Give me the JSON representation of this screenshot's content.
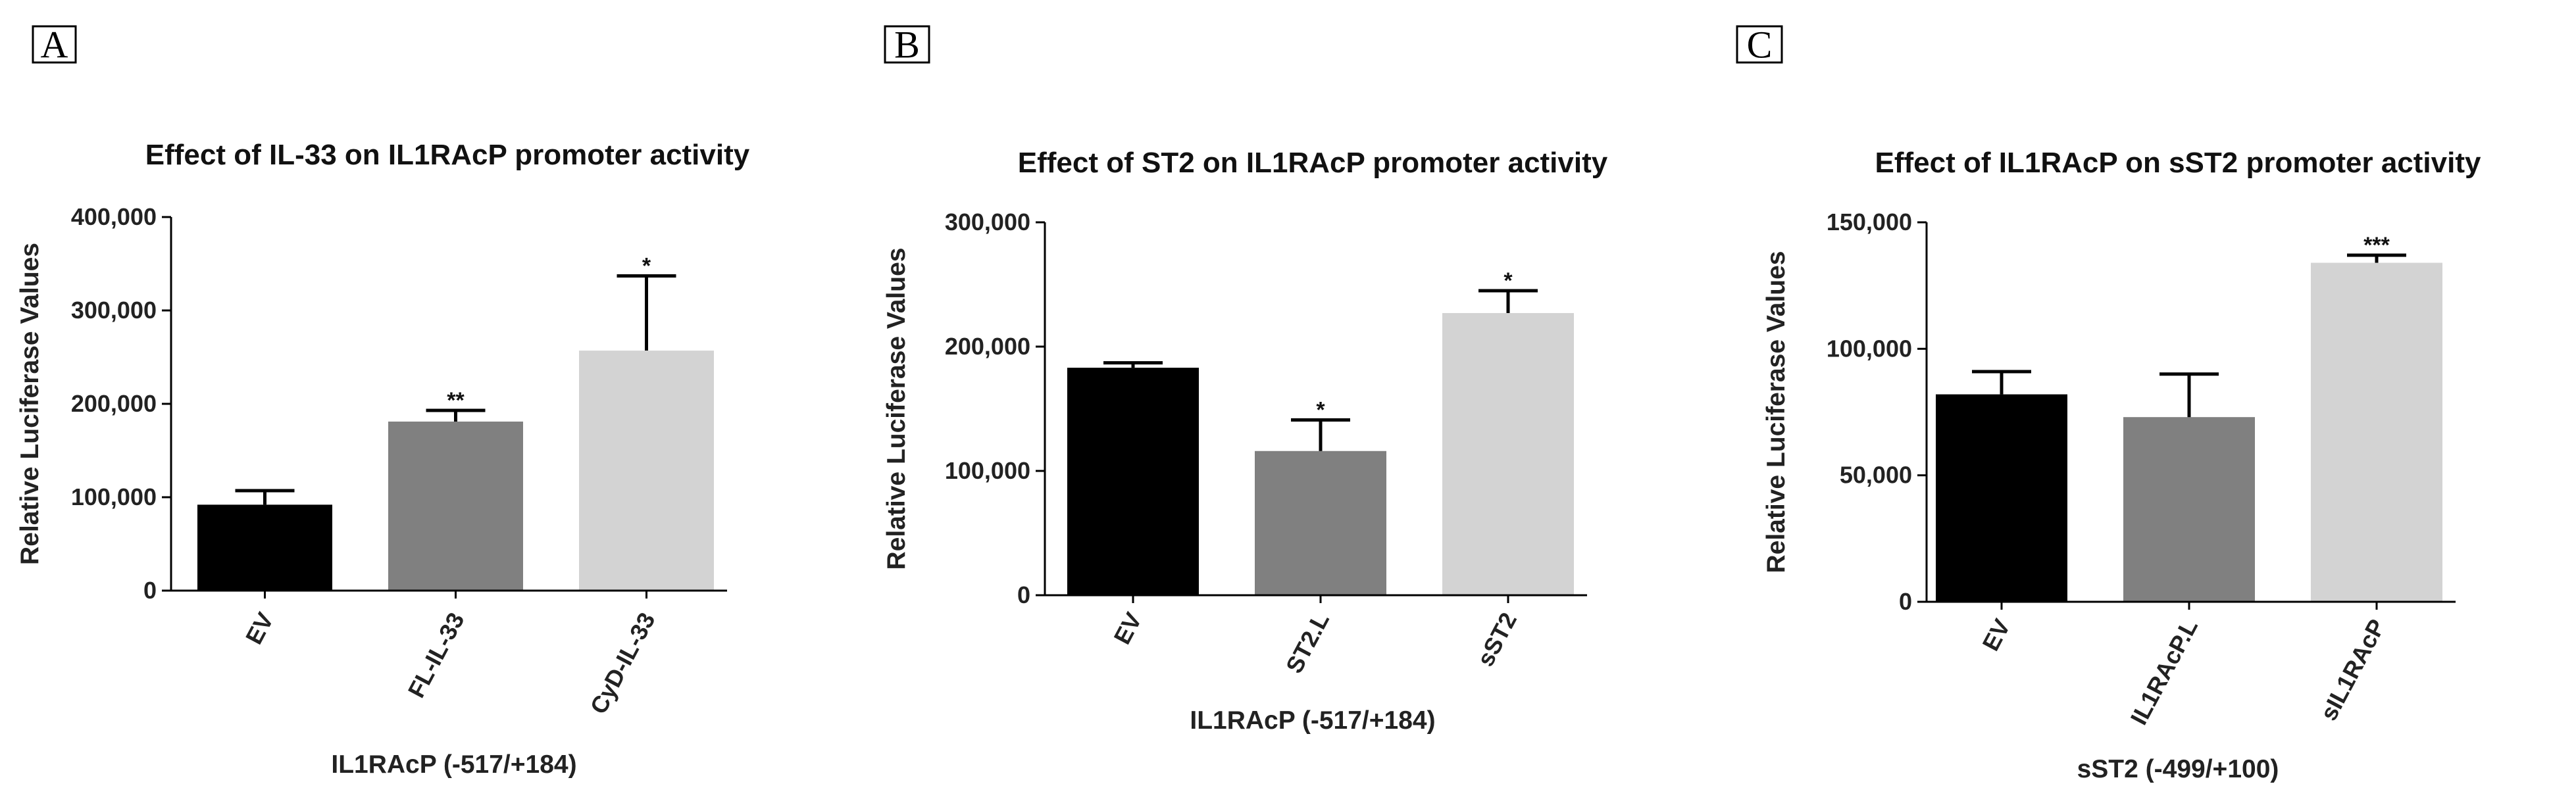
{
  "chart_data": [
    {
      "type": "bar",
      "panel": "A",
      "title": "Effect of IL-33 on IL1RAcP promoter activity",
      "ylabel": "Relative Luciferase Values",
      "xlabel": "IL1RAcP (-517/+184)",
      "ylim": [
        0,
        400000
      ],
      "yticks": [
        0,
        100000,
        200000,
        300000,
        400000
      ],
      "ytick_labels": [
        "0",
        "100,000",
        "200,000",
        "300,000",
        "400,000"
      ],
      "categories": [
        "EV",
        "FL-IL-33",
        "CyD-IL-33"
      ],
      "values": [
        92000,
        181000,
        257000
      ],
      "errors": [
        15000,
        12000,
        80000
      ],
      "significance": [
        "",
        "**",
        "*"
      ],
      "colors": [
        "#000000",
        "#808080",
        "#d3d3d3"
      ]
    },
    {
      "type": "bar",
      "panel": "B",
      "title": "Effect of ST2 on IL1RAcP promoter activity",
      "ylabel": "Relative Luciferase Values",
      "xlabel": "IL1RAcP (-517/+184)",
      "ylim": [
        0,
        300000
      ],
      "yticks": [
        0,
        100000,
        200000,
        300000
      ],
      "ytick_labels": [
        "0",
        "100,000",
        "200,000",
        "300,000"
      ],
      "categories": [
        "EV",
        "ST2.L",
        "sST2"
      ],
      "values": [
        183000,
        116000,
        227000
      ],
      "errors": [
        4000,
        25000,
        18000
      ],
      "significance": [
        "",
        "*",
        "*"
      ],
      "colors": [
        "#000000",
        "#808080",
        "#d3d3d3"
      ]
    },
    {
      "type": "bar",
      "panel": "C",
      "title": "Effect of IL1RAcP on sST2 promoter activity",
      "ylabel": "Relative Luciferase Values",
      "xlabel": "sST2 (-499/+100)",
      "ylim": [
        0,
        150000
      ],
      "yticks": [
        0,
        50000,
        100000,
        150000
      ],
      "ytick_labels": [
        "0",
        "50,000",
        "100,000",
        "150,000"
      ],
      "categories": [
        "EV",
        "IL1RAcP.L",
        "sIL1RAcP"
      ],
      "values": [
        82000,
        73000,
        134000
      ],
      "errors": [
        9000,
        17000,
        3000
      ],
      "significance": [
        "",
        "",
        "***"
      ],
      "colors": [
        "#000000",
        "#808080",
        "#d3d3d3"
      ]
    }
  ]
}
